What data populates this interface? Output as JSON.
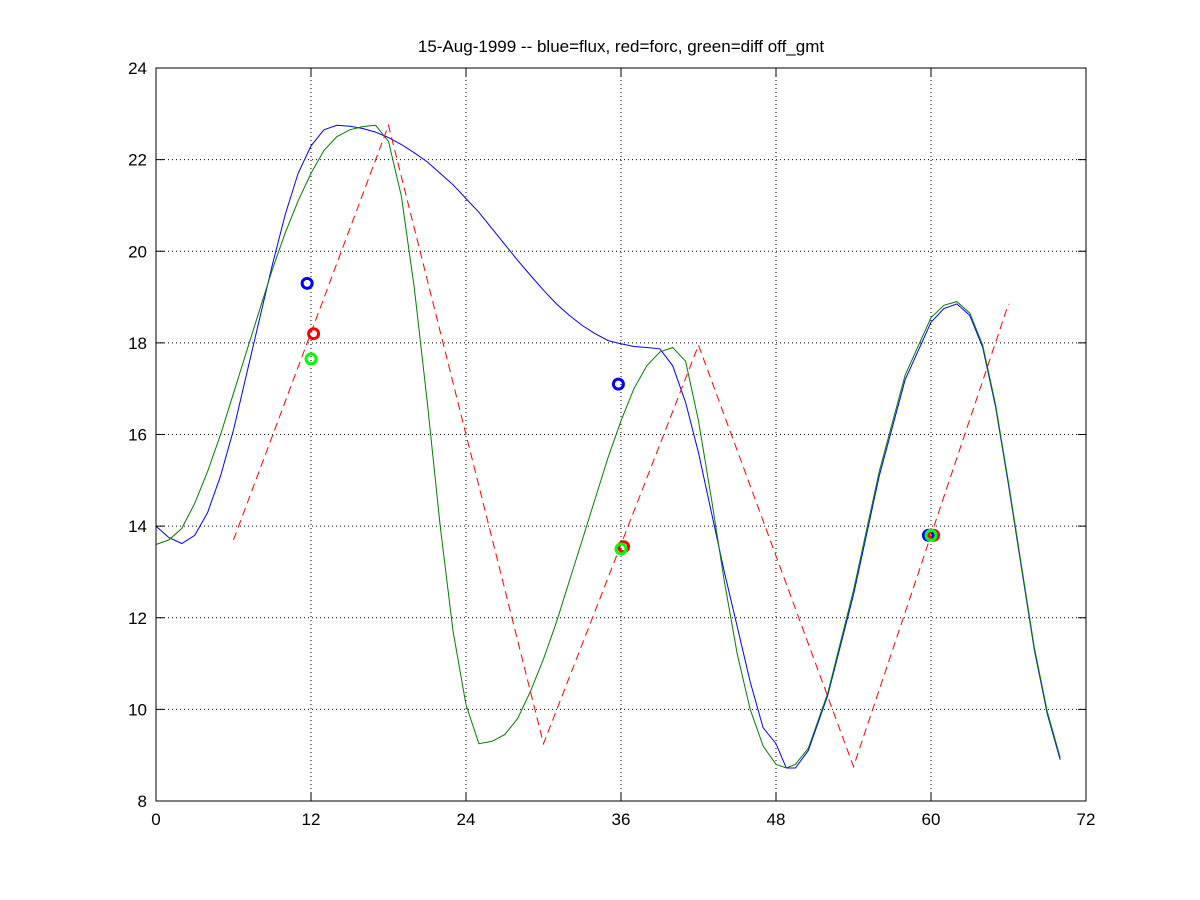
{
  "chart_data": {
    "type": "line",
    "title": "15-Aug-1999 -- blue=flux, red=forc, green=diff off_gmt",
    "xlabel": "",
    "ylabel": "",
    "xlim": [
      0,
      72
    ],
    "ylim": [
      8,
      24
    ],
    "xticks": [
      0,
      12,
      24,
      36,
      48,
      60,
      72
    ],
    "yticks": [
      8,
      10,
      12,
      14,
      16,
      18,
      20,
      22,
      24
    ],
    "grid": true,
    "colors": {
      "blue": "#0000ff",
      "red": "#ff0000",
      "green": "#008000",
      "marker_green": "#00ff00"
    },
    "series": [
      {
        "color": "blue",
        "style": "solid",
        "points": [
          [
            0,
            14.0
          ],
          [
            1,
            13.75
          ],
          [
            2,
            13.62
          ],
          [
            3,
            13.8
          ],
          [
            4,
            14.3
          ],
          [
            5,
            15.1
          ],
          [
            6,
            16.1
          ],
          [
            7,
            17.3
          ],
          [
            8,
            18.5
          ],
          [
            9,
            19.7
          ],
          [
            10,
            20.8
          ],
          [
            11,
            21.7
          ],
          [
            12,
            22.3
          ],
          [
            13,
            22.65
          ],
          [
            14,
            22.75
          ],
          [
            15,
            22.73
          ],
          [
            16,
            22.68
          ],
          [
            17,
            22.6
          ],
          [
            18,
            22.48
          ],
          [
            19,
            22.33
          ],
          [
            20,
            22.15
          ],
          [
            21,
            21.95
          ],
          [
            22,
            21.7
          ],
          [
            23,
            21.45
          ],
          [
            24,
            21.15
          ],
          [
            25,
            20.85
          ],
          [
            26,
            20.5
          ],
          [
            27,
            20.15
          ],
          [
            28,
            19.8
          ],
          [
            29,
            19.47
          ],
          [
            30,
            19.15
          ],
          [
            31,
            18.85
          ],
          [
            32,
            18.6
          ],
          [
            33,
            18.38
          ],
          [
            34,
            18.2
          ],
          [
            35,
            18.05
          ],
          [
            36,
            17.98
          ],
          [
            37,
            17.92
          ],
          [
            38,
            17.9
          ],
          [
            39,
            17.87
          ],
          [
            40,
            17.5
          ],
          [
            41,
            16.7
          ],
          [
            42,
            15.6
          ],
          [
            43,
            14.3
          ],
          [
            44,
            13.0
          ],
          [
            45,
            11.8
          ],
          [
            46,
            10.6
          ],
          [
            47,
            9.6
          ],
          [
            48,
            9.25
          ],
          [
            48.8,
            8.72
          ],
          [
            49.5,
            8.72
          ],
          [
            50.5,
            9.1
          ],
          [
            52,
            10.3
          ],
          [
            54,
            12.5
          ],
          [
            56,
            15.1
          ],
          [
            58,
            17.2
          ],
          [
            60,
            18.45
          ],
          [
            61,
            18.75
          ],
          [
            62,
            18.85
          ],
          [
            63,
            18.6
          ],
          [
            64,
            17.9
          ],
          [
            65,
            16.6
          ],
          [
            66,
            14.9
          ],
          [
            67,
            13.1
          ],
          [
            68,
            11.3
          ],
          [
            69,
            9.9
          ],
          [
            70,
            8.9
          ]
        ]
      },
      {
        "color": "green",
        "style": "solid",
        "points": [
          [
            0,
            13.6
          ],
          [
            1,
            13.7
          ],
          [
            2,
            13.95
          ],
          [
            3,
            14.5
          ],
          [
            4,
            15.2
          ],
          [
            5,
            16.0
          ],
          [
            6,
            16.9
          ],
          [
            7,
            17.8
          ],
          [
            8,
            18.7
          ],
          [
            9,
            19.6
          ],
          [
            10,
            20.4
          ],
          [
            11,
            21.1
          ],
          [
            12,
            21.7
          ],
          [
            13,
            22.2
          ],
          [
            14,
            22.5
          ],
          [
            15,
            22.65
          ],
          [
            16,
            22.72
          ],
          [
            17,
            22.75
          ],
          [
            18,
            22.4
          ],
          [
            19,
            21.2
          ],
          [
            20,
            19.2
          ],
          [
            21,
            16.7
          ],
          [
            22,
            14.0
          ],
          [
            23,
            11.7
          ],
          [
            24,
            10.1
          ],
          [
            25,
            9.25
          ],
          [
            26,
            9.3
          ],
          [
            27,
            9.45
          ],
          [
            28,
            9.8
          ],
          [
            29,
            10.4
          ],
          [
            30,
            11.1
          ],
          [
            31,
            11.9
          ],
          [
            32,
            12.8
          ],
          [
            33,
            13.7
          ],
          [
            34,
            14.6
          ],
          [
            35,
            15.5
          ],
          [
            36,
            16.3
          ],
          [
            37,
            17.0
          ],
          [
            38,
            17.5
          ],
          [
            39,
            17.8
          ],
          [
            40,
            17.9
          ],
          [
            41,
            17.6
          ],
          [
            42,
            16.3
          ],
          [
            43,
            14.6
          ],
          [
            44,
            12.8
          ],
          [
            45,
            11.2
          ],
          [
            46,
            10.0
          ],
          [
            47,
            9.2
          ],
          [
            48,
            8.8
          ],
          [
            48.8,
            8.72
          ],
          [
            49.5,
            8.8
          ],
          [
            50.5,
            9.15
          ],
          [
            52,
            10.35
          ],
          [
            54,
            12.6
          ],
          [
            56,
            15.2
          ],
          [
            58,
            17.3
          ],
          [
            60,
            18.55
          ],
          [
            61,
            18.82
          ],
          [
            62,
            18.9
          ],
          [
            63,
            18.65
          ],
          [
            64,
            17.95
          ],
          [
            65,
            16.65
          ],
          [
            66,
            14.95
          ],
          [
            67,
            13.15
          ],
          [
            68,
            11.35
          ],
          [
            69,
            9.95
          ],
          [
            70,
            8.95
          ]
        ]
      },
      {
        "color": "red",
        "style": "dashed",
        "points": [
          [
            6,
            13.7
          ],
          [
            18,
            22.75
          ],
          [
            30,
            9.25
          ],
          [
            42,
            17.95
          ],
          [
            54,
            8.75
          ],
          [
            66,
            18.85
          ]
        ]
      }
    ],
    "markers": [
      {
        "color": "blue",
        "x": 11.7,
        "y": 19.3
      },
      {
        "color": "red",
        "x": 12.2,
        "y": 18.2
      },
      {
        "color": "marker_green",
        "x": 12.0,
        "y": 17.65
      },
      {
        "color": "blue",
        "x": 35.8,
        "y": 17.1
      },
      {
        "color": "red",
        "x": 36.2,
        "y": 13.55
      },
      {
        "color": "marker_green",
        "x": 36.0,
        "y": 13.5
      },
      {
        "color": "blue",
        "x": 59.8,
        "y": 13.8
      },
      {
        "color": "red",
        "x": 60.2,
        "y": 13.8
      },
      {
        "color": "marker_green",
        "x": 60.0,
        "y": 13.8
      }
    ]
  }
}
